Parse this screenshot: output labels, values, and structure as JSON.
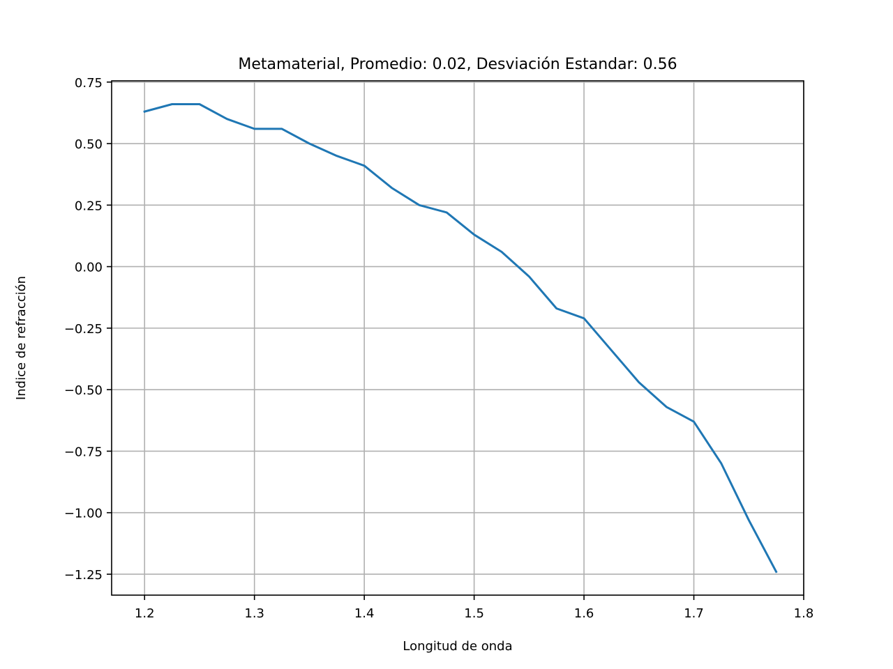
{
  "chart_data": {
    "type": "line",
    "title": "Metamaterial, Promedio: 0.02, Desviación Estandar: 0.56",
    "xlabel": "Longitud de onda",
    "ylabel": "Indice de refracción",
    "xlim": [
      1.17,
      1.8
    ],
    "ylim": [
      -1.335,
      0.755
    ],
    "xticks": [
      1.2,
      1.3,
      1.4,
      1.5,
      1.6,
      1.7,
      1.8
    ],
    "xtick_labels": [
      "1.2",
      "1.3",
      "1.4",
      "1.5",
      "1.6",
      "1.7",
      "1.8"
    ],
    "yticks": [
      0.75,
      0.5,
      0.25,
      0.0,
      -0.25,
      -0.5,
      -0.75,
      -1.0,
      -1.25
    ],
    "ytick_labels": [
      "0.75",
      "0.50",
      "0.25",
      "0.00",
      "−0.25",
      "−0.50",
      "−0.75",
      "−1.00",
      "−1.25"
    ],
    "grid": true,
    "series": [
      {
        "color": "#1f77b4",
        "x": [
          1.2,
          1.225,
          1.25,
          1.275,
          1.3,
          1.325,
          1.35,
          1.375,
          1.4,
          1.425,
          1.45,
          1.475,
          1.5,
          1.525,
          1.55,
          1.575,
          1.6,
          1.625,
          1.65,
          1.675,
          1.7,
          1.725,
          1.75,
          1.775
        ],
        "y": [
          0.63,
          0.66,
          0.66,
          0.6,
          0.56,
          0.56,
          0.5,
          0.45,
          0.41,
          0.32,
          0.25,
          0.22,
          0.13,
          0.06,
          -0.04,
          -0.17,
          -0.21,
          -0.34,
          -0.47,
          -0.57,
          -0.63,
          -0.8,
          -1.03,
          -1.24
        ]
      }
    ]
  }
}
